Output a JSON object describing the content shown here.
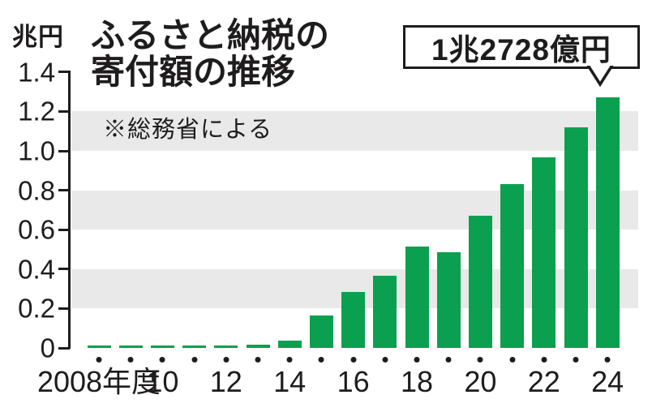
{
  "figure": {
    "unit_label": "兆円",
    "title_line1": "ふるさと納税の",
    "title_line2": "寄付額の推移",
    "source_note": "※総務省による",
    "annotation_label": "1兆2728億円"
  },
  "chart_data": {
    "type": "bar",
    "title": "ふるさと納税の寄付額の推移",
    "subtitle_note": "※総務省による",
    "unit": "兆円",
    "xlabel": "年度",
    "ylabel": "兆円",
    "ylim": [
      0,
      1.4
    ],
    "grid": "alternating horizontal bands",
    "band_ranges": [
      [
        0.2,
        0.4
      ],
      [
        0.6,
        0.8
      ],
      [
        1.0,
        1.2
      ]
    ],
    "categories": [
      "2008",
      "2009",
      "2010",
      "2011",
      "2012",
      "2013",
      "2014",
      "2015",
      "2016",
      "2017",
      "2018",
      "2019",
      "2020",
      "2021",
      "2022",
      "2023",
      "2024"
    ],
    "values": [
      0.0081,
      0.0077,
      0.0102,
      0.0122,
      0.0104,
      0.0146,
      0.0389,
      0.1653,
      0.2844,
      0.3653,
      0.5127,
      0.4875,
      0.6725,
      0.8302,
      0.9654,
      1.1175,
      1.2728
    ],
    "y_ticks": [
      {
        "value": 1.4,
        "label": "1.4"
      },
      {
        "value": 1.2,
        "label": "1.2"
      },
      {
        "value": 1.0,
        "label": "1.0"
      },
      {
        "value": 0.8,
        "label": "0.8"
      },
      {
        "value": 0.6,
        "label": "0.6"
      },
      {
        "value": 0.4,
        "label": "0.4"
      },
      {
        "value": 0.2,
        "label": "0.2"
      },
      {
        "value": 0.0,
        "label": "0"
      }
    ],
    "x_tick_labels": [
      {
        "index": 0,
        "label": "2008年度"
      },
      {
        "index": 2,
        "label": "10"
      },
      {
        "index": 4,
        "label": "12"
      },
      {
        "index": 6,
        "label": "14"
      },
      {
        "index": 8,
        "label": "16"
      },
      {
        "index": 10,
        "label": "18"
      },
      {
        "index": 12,
        "label": "20"
      },
      {
        "index": 14,
        "label": "22"
      },
      {
        "index": 16,
        "label": "24"
      }
    ],
    "annotation": {
      "text": "1兆2728億円",
      "target_index": 16
    },
    "colors": {
      "bar": "#0aa04f",
      "band": "#e9e9e9",
      "text": "#1e1c1c",
      "background": "#ffffff"
    },
    "legend": null
  }
}
